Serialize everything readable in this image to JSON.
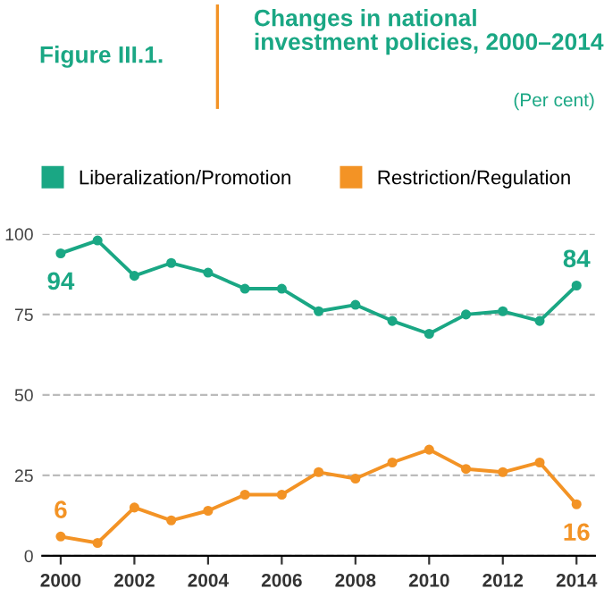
{
  "chart_data": {
    "type": "line",
    "title": "Changes in national investment policies, 2000–2014",
    "subtitle": "(Per cent)",
    "annotations": [
      "Figure III.1."
    ],
    "x": [
      2000,
      2001,
      2002,
      2003,
      2004,
      2005,
      2006,
      2007,
      2008,
      2009,
      2010,
      2011,
      2012,
      2013,
      2014
    ],
    "series": [
      {
        "name": "Liberalization/Promotion",
        "color": "#1aa784",
        "values": [
          94,
          98,
          87,
          91,
          88,
          83,
          83,
          76,
          78,
          73,
          69,
          75,
          76,
          73,
          84
        ],
        "value_labels": [
          "94",
          null,
          null,
          null,
          null,
          null,
          null,
          null,
          null,
          null,
          null,
          null,
          null,
          null,
          "84"
        ]
      },
      {
        "name": "Restriction/Regulation",
        "color": "#f39325",
        "values": [
          6,
          4,
          15,
          11,
          14,
          19,
          19,
          26,
          24,
          29,
          33,
          27,
          26,
          29,
          16
        ],
        "value_labels": [
          "6",
          null,
          null,
          null,
          null,
          null,
          null,
          null,
          null,
          null,
          null,
          null,
          null,
          null,
          "16"
        ]
      }
    ],
    "xlim": [
      1999.5,
      2014.5
    ],
    "xticks": [
      2000,
      2002,
      2004,
      2006,
      2008,
      2010,
      2012,
      2014
    ],
    "ylim": [
      0,
      100
    ],
    "yticks": [
      0,
      25,
      50,
      75,
      100
    ],
    "grid": "y",
    "legend": "top",
    "marker": "circle",
    "line_style": "solid"
  }
}
